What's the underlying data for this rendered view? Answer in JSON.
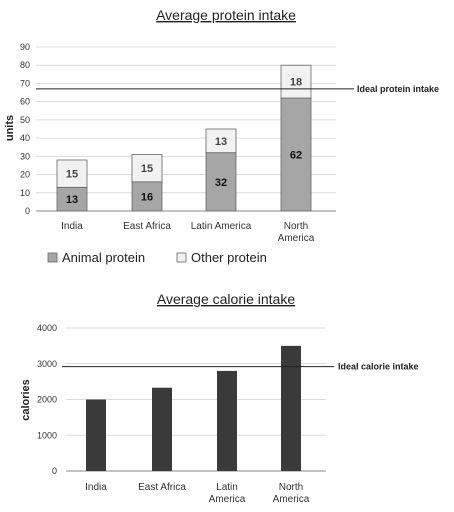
{
  "chart_data": [
    {
      "type": "bar",
      "stacked": true,
      "title": "Average protein intake",
      "ylabel": "units",
      "xlabel": "",
      "ylim": [
        0,
        90
      ],
      "yticks": [
        0,
        10,
        20,
        30,
        40,
        50,
        60,
        70,
        80,
        90
      ],
      "categories": [
        "India",
        "East Africa",
        "Latin America",
        "North\nAmerica"
      ],
      "series": [
        {
          "name": "Animal protein",
          "values": [
            13,
            16,
            32,
            62
          ],
          "color": "#a6a6a6"
        },
        {
          "name": "Other protein",
          "values": [
            15,
            15,
            13,
            18
          ],
          "color": "#f2f2f2"
        }
      ],
      "reference_line": {
        "label": "Ideal protein intake",
        "value": 67
      },
      "grid": true,
      "legend": "bottom"
    },
    {
      "type": "bar",
      "title": "Average calorie intake",
      "ylabel": "calories",
      "xlabel": "",
      "ylim": [
        0,
        4000
      ],
      "yticks": [
        0,
        1000,
        2000,
        3000,
        4000
      ],
      "categories": [
        "India",
        "East Africa",
        "Latin\nAmerica",
        "North\nAmerica"
      ],
      "series": [
        {
          "values": [
            2000,
            2330,
            2800,
            3500
          ],
          "color": "#3a3a3a"
        }
      ],
      "reference_line": {
        "label": "Ideal calorie intake",
        "value": 2920
      },
      "grid": true
    }
  ]
}
